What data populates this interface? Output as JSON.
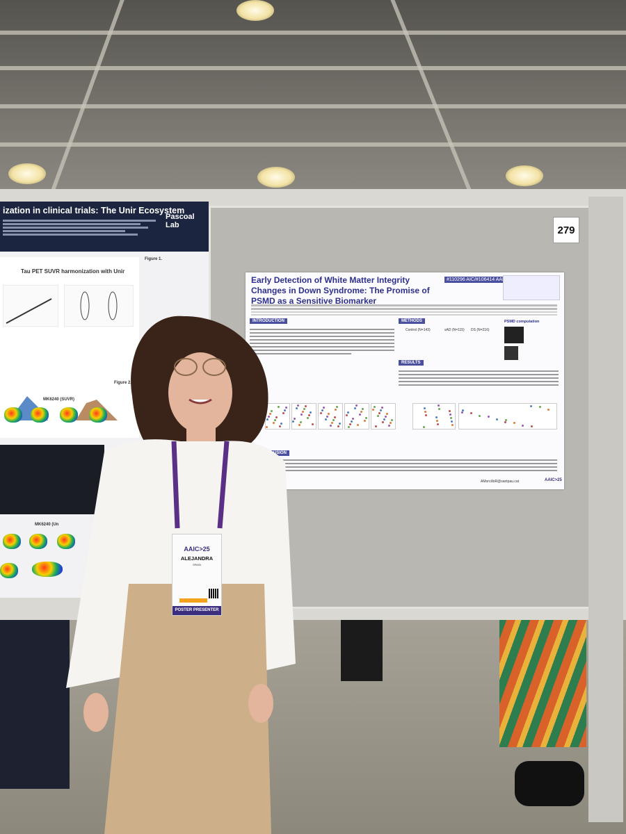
{
  "scene": {
    "description_colors": {
      "ceiling": "#6e6b65",
      "board": "#b8b7b2",
      "poster_header": "#1c2540",
      "accent_purple": "#4b4f9f"
    }
  },
  "board_number": "279",
  "left_poster": {
    "title": "ization in clinical trials: The Unir Ecosystem",
    "logo_text": "Pascoal Lab",
    "panel_title": "Tau PET SUVR harmonization with Unir",
    "figure1_label": "Figure 1.",
    "figure2_label": "Figure 2.",
    "scan_label_1": "MK6240 (SUVR)",
    "scan_label_2": "MK6240 (Un"
  },
  "main_poster": {
    "title": "Early Detection of White Matter Integrity Changes in Down Syndrome: The Promise of PSMD as a Sensitive Biomarker",
    "ids": "#110296 AIC/#106414 AAIC",
    "sections": {
      "introduction": "INTRODUCTION",
      "methods": "METHODS",
      "results": "RESULTS",
      "conclusion": "CLUSION"
    },
    "cohorts": [
      {
        "name": "SPIN",
        "group": "Control (N=143)"
      },
      {
        "name": "SPIN",
        "group": "sAD (N=115)"
      },
      {
        "name": "DABNI",
        "group": "DS (N=216)"
      }
    ],
    "psmd_header": "PSMD computation",
    "contact": "AMorcilloR@santpau.cat",
    "footer_logo": "AAIC>25"
  },
  "badge": {
    "conference": "AAIC>25",
    "name": "ALEJANDRA",
    "role": "POSTER PRESENTER",
    "country": "SPAIN"
  }
}
